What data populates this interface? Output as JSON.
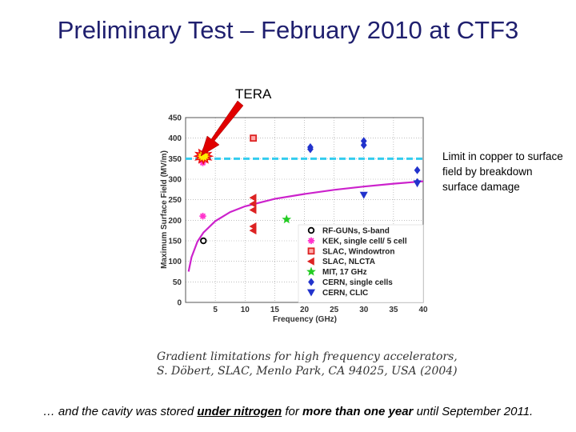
{
  "slide": {
    "title": "Preliminary Test – February 2010 at CTF3",
    "tera_label": "TERA",
    "note": "Limit in copper to surface field by breakdown surface damage",
    "caption_line1": "Gradient limitations for high frequency accelerators,",
    "caption_line2": "S. Döbert, SLAC, Menlo Park, CA 94025, USA (2004)",
    "footer_pre": "… and the cavity was stored ",
    "footer_b1": "under nitrogen",
    "footer_mid": " for ",
    "footer_b2": "more than one year",
    "footer_post": " until September 2011."
  },
  "chart_data": {
    "type": "scatter",
    "xlabel": "Frequency (GHz)",
    "ylabel": "Maximum Surface Field (MV/m)",
    "xlim": [
      0,
      40
    ],
    "ylim": [
      0,
      450
    ],
    "xticks": [
      5,
      10,
      15,
      20,
      25,
      30,
      35,
      40
    ],
    "yticks": [
      0,
      50,
      100,
      150,
      200,
      250,
      300,
      350,
      400,
      450
    ],
    "grid": true,
    "legend_position": "bottom-right",
    "series": [
      {
        "name": "RF-GUNs, S-band",
        "marker": "circle-open",
        "color": "#000000",
        "points": [
          [
            3,
            150
          ]
        ]
      },
      {
        "name": "KEK, single cell/ 5 cell",
        "marker": "asterisk",
        "color": "#ff33cc",
        "points": [
          [
            2.9,
            210
          ],
          [
            2.9,
            340
          ],
          [
            2.9,
            355
          ]
        ]
      },
      {
        "name": "SLAC, Windowtron",
        "marker": "square",
        "color": "#dd2222",
        "points": [
          [
            11.4,
            400
          ]
        ]
      },
      {
        "name": "SLAC, NLCTA",
        "marker": "triangle-left",
        "color": "#dd2222",
        "points": [
          [
            11.4,
            255
          ],
          [
            11.4,
            240
          ],
          [
            11.4,
            225
          ],
          [
            11.4,
            185
          ],
          [
            11.4,
            175
          ]
        ]
      },
      {
        "name": "MIT, 17 GHz",
        "marker": "star",
        "color": "#22cc22",
        "points": [
          [
            17,
            202
          ]
        ]
      },
      {
        "name": "CERN, single cells",
        "marker": "diamond",
        "color": "#2233cc",
        "points": [
          [
            21,
            378
          ],
          [
            21,
            373
          ],
          [
            30,
            393
          ],
          [
            30,
            383
          ],
          [
            39,
            322
          ],
          [
            39,
            293
          ]
        ]
      },
      {
        "name": "CERN, CLIC",
        "marker": "triangle-down",
        "color": "#2233cc",
        "points": [
          [
            30,
            262
          ],
          [
            39,
            290
          ]
        ]
      }
    ],
    "curves": [
      {
        "name": "breakdown limit curve",
        "color": "#cc22cc",
        "points": [
          [
            0.5,
            75
          ],
          [
            1,
            110
          ],
          [
            2,
            148
          ],
          [
            3,
            170
          ],
          [
            5,
            198
          ],
          [
            7.5,
            220
          ],
          [
            10,
            234
          ],
          [
            15,
            252
          ],
          [
            20,
            264
          ],
          [
            25,
            274
          ],
          [
            30,
            282
          ],
          [
            35,
            289
          ],
          [
            40,
            295
          ]
        ]
      }
    ],
    "hlines": [
      {
        "name": "copper surface field limit",
        "y": 350,
        "color": "#33ccee",
        "style": "dashed"
      }
    ],
    "annotations": [
      {
        "text": "TERA",
        "x": 3,
        "y": 360
      }
    ]
  }
}
